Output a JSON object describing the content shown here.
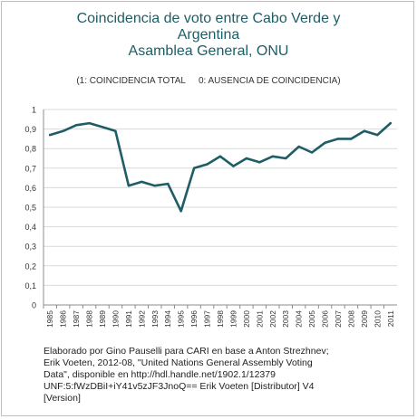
{
  "chart_data": {
    "type": "line",
    "title": [
      "Coincidencia de voto entre Cabo Verde y",
      "Argentina",
      "Asamblea General, ONU"
    ],
    "subtitle": {
      "left": "(1: COINCIDENCIA TOTAL",
      "right": "0: AUSENCIA DE COINCIDENCIA)"
    },
    "xlabel": "",
    "ylabel": "",
    "ylim": [
      0,
      1
    ],
    "y_ticks": [
      "0",
      "0,1",
      "0,2",
      "0,3",
      "0,4",
      "0,5",
      "0,6",
      "0,7",
      "0,8",
      "0,9",
      "1"
    ],
    "grid": true,
    "legend": "none",
    "categories": [
      "1985",
      "1986",
      "1987",
      "1988",
      "1989",
      "1990",
      "1991",
      "1992",
      "1993",
      "1994",
      "1995",
      "1996",
      "1997",
      "1998",
      "1999",
      "2000",
      "2001",
      "2002",
      "2003",
      "2004",
      "2005",
      "2006",
      "2007",
      "2008",
      "2009",
      "2010",
      "2011"
    ],
    "series": [
      {
        "color": "#1f5d66",
        "values": [
          0.87,
          0.89,
          0.92,
          0.93,
          0.91,
          0.89,
          0.61,
          0.63,
          0.61,
          0.62,
          0.48,
          0.7,
          0.72,
          0.76,
          0.71,
          0.75,
          0.73,
          0.76,
          0.75,
          0.81,
          0.78,
          0.83,
          0.85,
          0.85,
          0.89,
          0.87,
          0.93
        ]
      }
    ]
  },
  "source": [
    "Elaborado por Gino Pauselli para CARI en base a Anton Strezhnev;",
    "Erik Voeten, 2012-08, \"United Nations General Assembly Voting",
    "Data\", disponible en http://hdl.handle.net/1902.1/12379",
    "UNF:5:fWzDBiI+iY41v5zJF3JnoQ== Erik Voeten [Distributor] V4",
    "[Version]"
  ],
  "colors": {
    "line": "#1f5d66",
    "title": "#1f5d66",
    "grid": "#d9d9d9",
    "axis": "#8c8c8c"
  }
}
